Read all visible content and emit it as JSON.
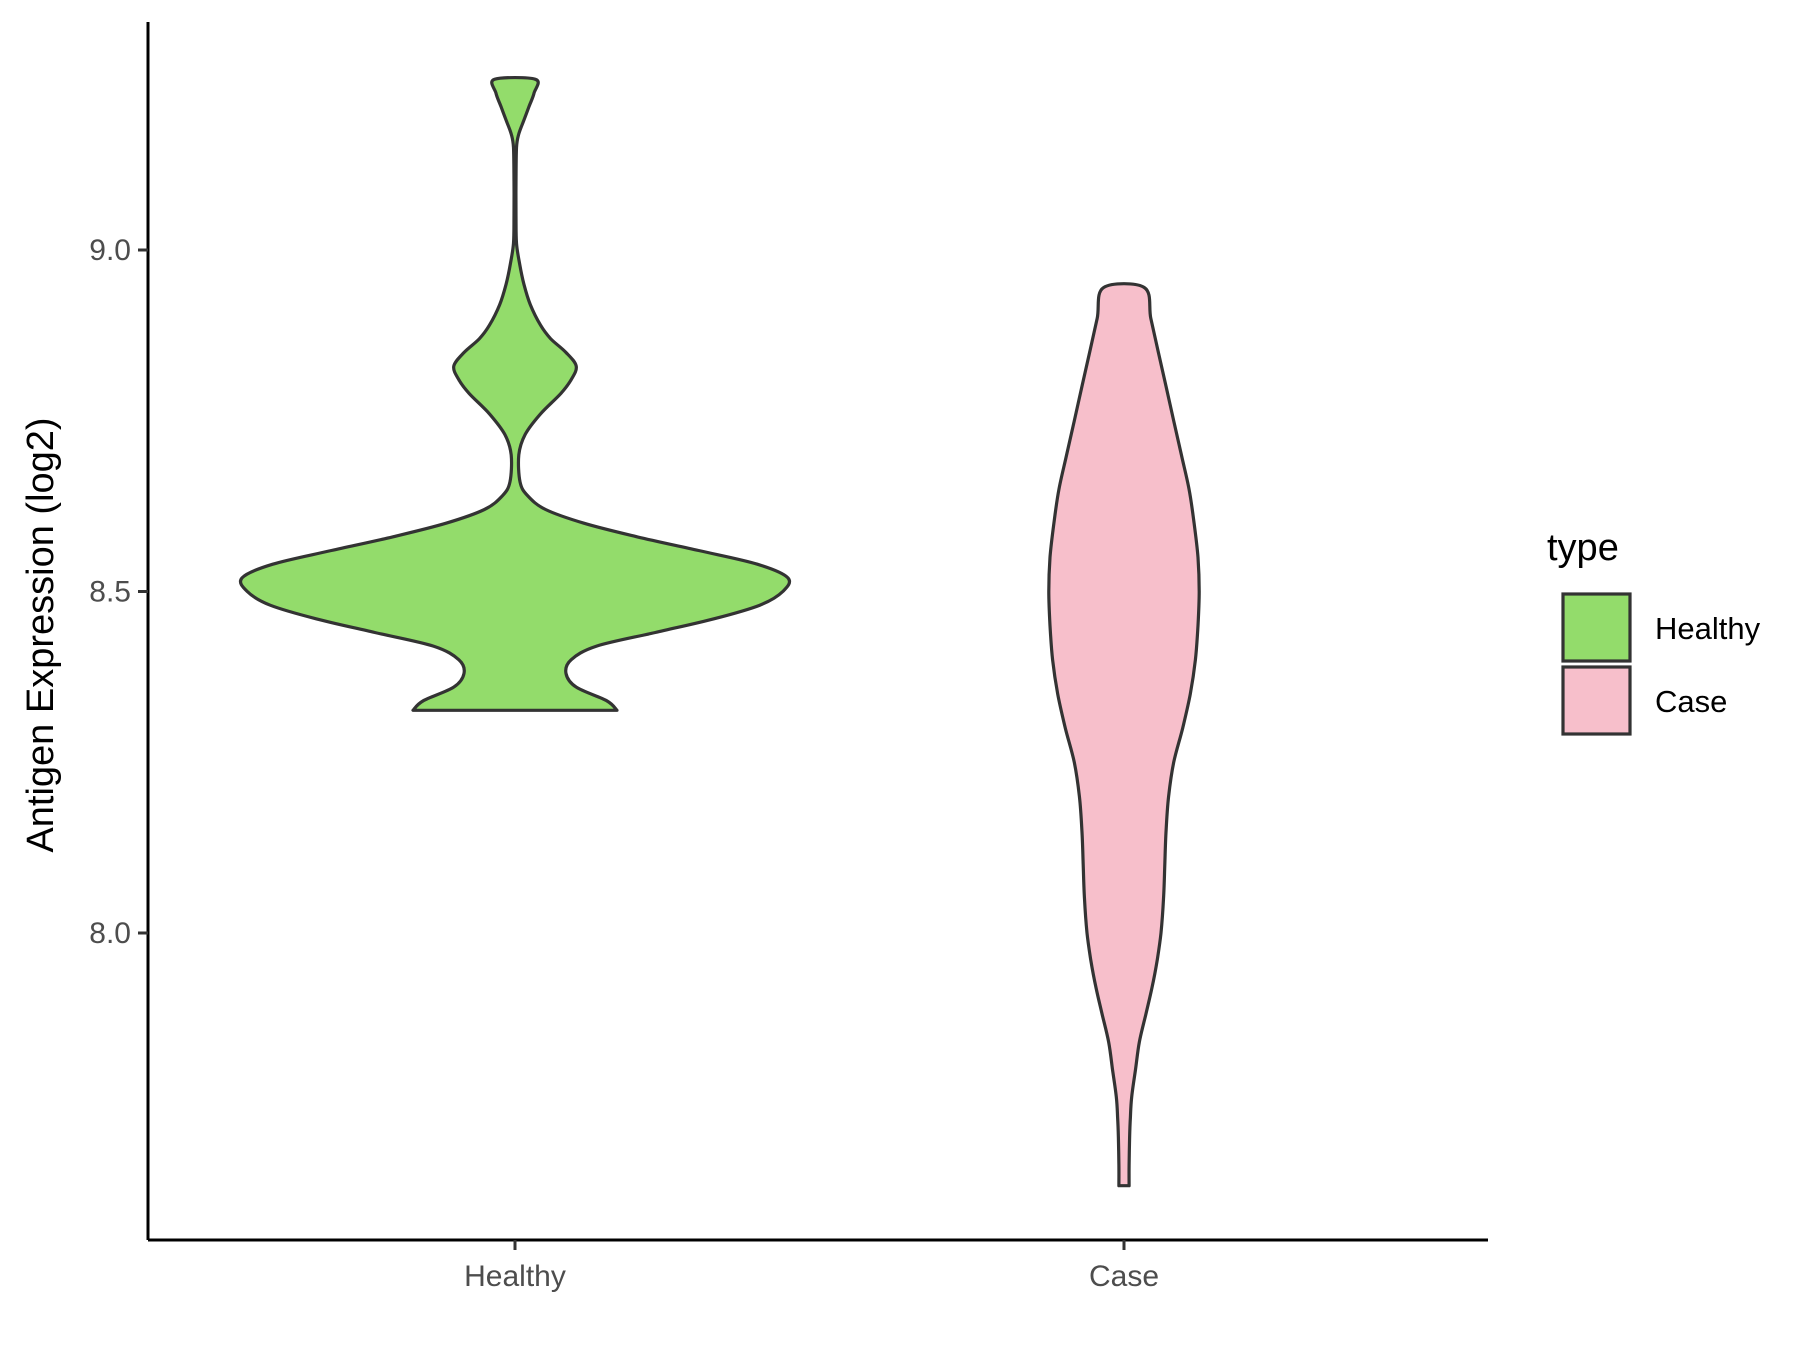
{
  "chart_data": {
    "type": "violin",
    "title": "",
    "xlabel": "",
    "ylabel": "Antigen Expression (log2)",
    "categories": [
      "Healthy",
      "Case"
    ],
    "y_ticks": [
      8.0,
      8.5,
      9.0
    ],
    "y_tick_labels": [
      "8.0",
      "8.5",
      "9.0"
    ],
    "ylim": [
      7.56,
      9.36
    ],
    "grid": false,
    "legend": {
      "title": "type",
      "placement": "right",
      "entries": [
        {
          "label": "Healthy",
          "color": "#93DC6B"
        },
        {
          "label": "Case",
          "color": "#F7BFCB"
        }
      ]
    },
    "series": [
      {
        "name": "Healthy",
        "color": "#93DC6B",
        "min": 8.326,
        "max": 9.25,
        "density_profile": [
          [
            8.326,
            0.4
          ],
          [
            8.34,
            0.36
          ],
          [
            8.36,
            0.24
          ],
          [
            8.38,
            0.2
          ],
          [
            8.4,
            0.22
          ],
          [
            8.42,
            0.32
          ],
          [
            8.44,
            0.55
          ],
          [
            8.46,
            0.78
          ],
          [
            8.48,
            0.96
          ],
          [
            8.5,
            1.05
          ],
          [
            8.52,
            1.07
          ],
          [
            8.54,
            0.95
          ],
          [
            8.56,
            0.72
          ],
          [
            8.58,
            0.48
          ],
          [
            8.6,
            0.27
          ],
          [
            8.62,
            0.12
          ],
          [
            8.64,
            0.05
          ],
          [
            8.66,
            0.02
          ],
          [
            8.7,
            0.015
          ],
          [
            8.73,
            0.04
          ],
          [
            8.76,
            0.1
          ],
          [
            8.79,
            0.18
          ],
          [
            8.81,
            0.22
          ],
          [
            8.83,
            0.24
          ],
          [
            8.85,
            0.2
          ],
          [
            8.87,
            0.14
          ],
          [
            8.89,
            0.1
          ],
          [
            8.92,
            0.06
          ],
          [
            8.95,
            0.035
          ],
          [
            8.98,
            0.018
          ],
          [
            9.01,
            0.006
          ],
          [
            9.05,
            0.004
          ],
          [
            9.1,
            0.004
          ],
          [
            9.15,
            0.006
          ],
          [
            9.17,
            0.015
          ],
          [
            9.19,
            0.035
          ],
          [
            9.21,
            0.055
          ],
          [
            9.23,
            0.075
          ],
          [
            9.25,
            0.08
          ]
        ]
      },
      {
        "name": "Case",
        "color": "#F7BFCB",
        "min": 7.63,
        "max": 8.945,
        "density_profile": [
          [
            7.63,
            0.02
          ],
          [
            7.66,
            0.02
          ],
          [
            7.7,
            0.022
          ],
          [
            7.73,
            0.025
          ],
          [
            7.76,
            0.03
          ],
          [
            7.8,
            0.045
          ],
          [
            7.84,
            0.06
          ],
          [
            7.88,
            0.085
          ],
          [
            7.92,
            0.11
          ],
          [
            7.96,
            0.13
          ],
          [
            8.0,
            0.145
          ],
          [
            8.05,
            0.155
          ],
          [
            8.1,
            0.16
          ],
          [
            8.15,
            0.165
          ],
          [
            8.2,
            0.175
          ],
          [
            8.25,
            0.195
          ],
          [
            8.3,
            0.23
          ],
          [
            8.35,
            0.26
          ],
          [
            8.4,
            0.28
          ],
          [
            8.45,
            0.29
          ],
          [
            8.5,
            0.295
          ],
          [
            8.55,
            0.29
          ],
          [
            8.6,
            0.275
          ],
          [
            8.65,
            0.255
          ],
          [
            8.7,
            0.225
          ],
          [
            8.75,
            0.195
          ],
          [
            8.8,
            0.165
          ],
          [
            8.85,
            0.135
          ],
          [
            8.9,
            0.105
          ],
          [
            8.945,
            0.08
          ]
        ]
      }
    ]
  }
}
